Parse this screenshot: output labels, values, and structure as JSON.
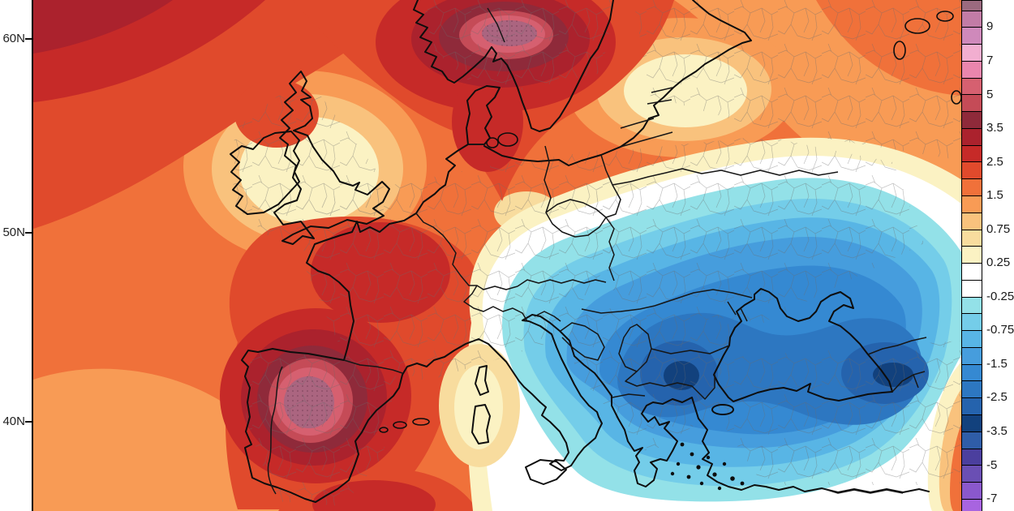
{
  "map": {
    "latitude_labels": [
      {
        "label": "60N"
      },
      {
        "label": "50N"
      },
      {
        "label": "40N"
      }
    ]
  },
  "colorbar": {
    "tick_labels": [
      "9",
      "7",
      "5",
      "3.5",
      "2.5",
      "1.5",
      "0.75",
      "0.25",
      "-0.25",
      "-0.75",
      "-1.5",
      "-2.5",
      "-3.5",
      "-5",
      "-7"
    ],
    "segment_colors": [
      "#9b6a7f",
      "#c27ca6",
      "#cf89bb",
      "#f2aed0",
      "#ea86ad",
      "#d66070",
      "#c54b57",
      "#8f2a3a",
      "#ab222d",
      "#c62a28",
      "#e04a2c",
      "#f0713a",
      "#f89b55",
      "#f9c27d",
      "#f8dc9e",
      "#fbf2c3",
      "#ffffff",
      "#ffffff",
      "#93e1e8",
      "#74cde9",
      "#58b5e5",
      "#469ddd",
      "#3589d2",
      "#2d77c1",
      "#2563ad",
      "#12417d",
      "#2f5da8",
      "#4b3f9e",
      "#6a4fb4",
      "#8a58cc",
      "#a864e0"
    ]
  },
  "palette": {
    "pGt9": "#9b6a7f",
    "p9": "#c27ca6",
    "p8": "#cf89bb",
    "p7": "#f2aed0",
    "p6": "#ea86ad",
    "p5": "#d66070",
    "p45": "#c54b57",
    "p35": "#8f2a3a",
    "p3": "#ab222d",
    "p25": "#c62a28",
    "p2": "#e04a2c",
    "p15": "#f0713a",
    "p1": "#f89b55",
    "p075": "#f9c27d",
    "p05": "#f8dc9e",
    "p025": "#fbf2c3",
    "zero": "#ffffff",
    "m025": "#93e1e8",
    "m05": "#74cde9",
    "m075": "#58b5e5",
    "m1": "#469ddd",
    "m15": "#3589d2",
    "m2": "#2d77c1",
    "m25": "#2563ad",
    "m3": "#12417d",
    "mauve": "#ab6580",
    "coast": "#0d0d0d",
    "border": "#161616"
  },
  "map_data": {
    "type": "filled-contour-map",
    "contour_levels": [
      -7,
      -5,
      -3.5,
      -2.5,
      -1.5,
      -0.75,
      -0.25,
      0.25,
      0.75,
      1.5,
      2.5,
      3.5,
      5,
      7,
      9
    ],
    "regions": [
      {
        "region": "Southern Norway",
        "value": "+5 to +10"
      },
      {
        "region": "Central Iberia",
        "value": "+4 to +7"
      },
      {
        "region": "France / Bay of Biscay",
        "value": "+2.5 to +3.5"
      },
      {
        "region": "NE Atlantic (top-left)",
        "value": "+2.5 to +3.5"
      },
      {
        "region": "Scandinavia / Denmark",
        "value": "+2.5 to +4"
      },
      {
        "region": "UK and Ireland interior",
        "value": "+0.25 to +1"
      },
      {
        "region": "Germany / Poland band",
        "value": "0 to +1.5"
      },
      {
        "region": "Baltic states",
        "value": "+0.25 to +0.75"
      },
      {
        "region": "NW Russia (top right)",
        "value": "+1 to +2.5"
      },
      {
        "region": "Czechia / Austria",
        "value": "-0.25 to -1.5"
      },
      {
        "region": "Italy",
        "value": "-0.5 to -2"
      },
      {
        "region": "Serbia / N. Macedonia / Bulgaria",
        "value": "-2.5 to -3.5"
      },
      {
        "region": "Greece / Aegean",
        "value": "-1 to -2.5"
      },
      {
        "region": "Turkey / Black Sea",
        "value": "-1.5 to -3"
      },
      {
        "region": "Eastern Black Sea / Caucasus",
        "value": "-2.5 to -3.5"
      },
      {
        "region": "Ukraine",
        "value": "-0.5 to -1.5"
      },
      {
        "region": "NW Africa coast",
        "value": "+1.5 to +3"
      }
    ]
  }
}
